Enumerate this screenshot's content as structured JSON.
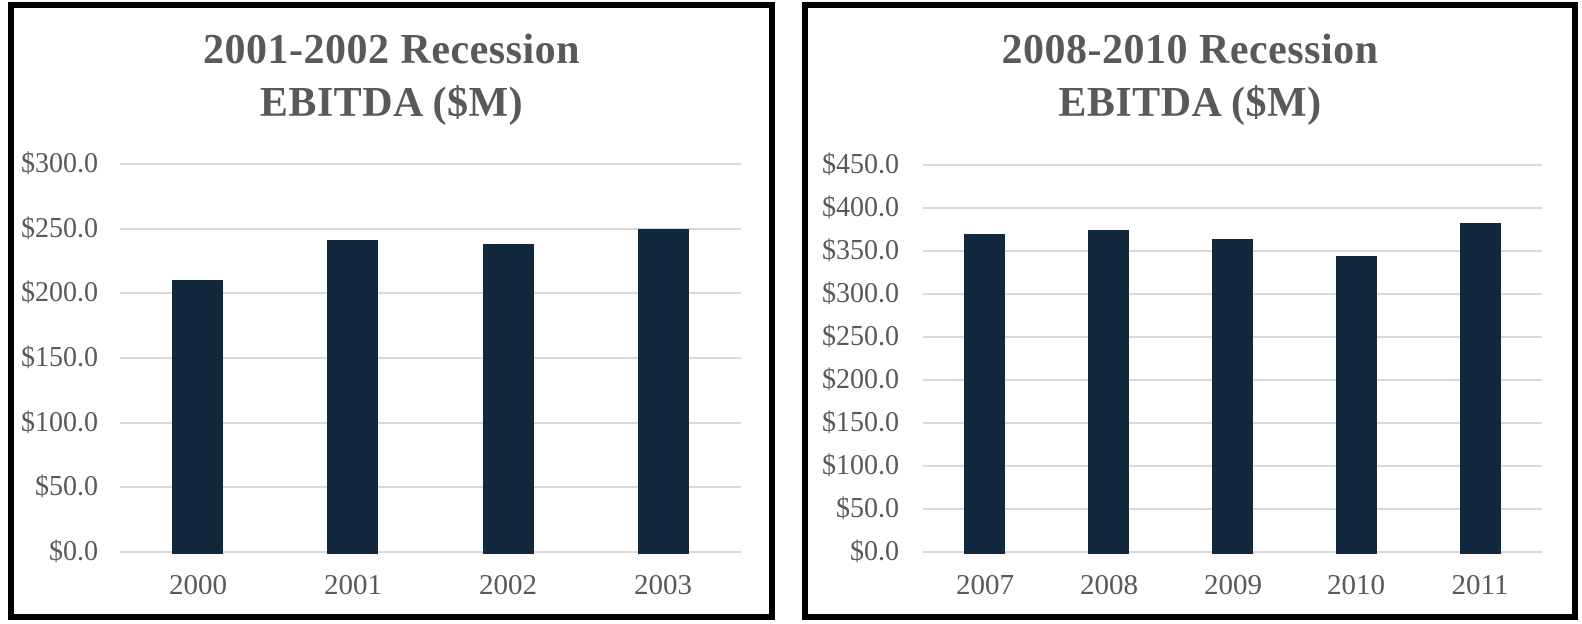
{
  "style": {
    "bar_color": "#12293d",
    "grid_color": "#d9d9d9",
    "text_color": "#595959",
    "panel_border_color": "#000000",
    "page_background": "#ffffff"
  },
  "chart_data": [
    {
      "type": "bar",
      "title": "2001-2002 Recession EBITDA ($M)",
      "title_lines": [
        "2001-2002 Recession",
        "EBITDA ($M)"
      ],
      "categories": [
        "2000",
        "2001",
        "2002",
        "2003"
      ],
      "values": [
        210,
        241,
        238,
        250
      ],
      "series": [
        {
          "name": "EBITDA ($M)",
          "values": [
            210,
            241,
            238,
            250
          ]
        }
      ],
      "xlabel": "",
      "ylabel": "EBITDA ($M)",
      "ylim": [
        0,
        300
      ],
      "ytick_step": 50,
      "yticks": [
        {
          "value": 0,
          "label": "$0.0"
        },
        {
          "value": 50,
          "label": "$50.0"
        },
        {
          "value": 100,
          "label": "$100.0"
        },
        {
          "value": 150,
          "label": "$150.0"
        },
        {
          "value": 200,
          "label": "$200.0"
        },
        {
          "value": 250,
          "label": "$250.0"
        },
        {
          "value": 300,
          "label": "$300.0"
        }
      ],
      "grid": true,
      "legend": "none"
    },
    {
      "type": "bar",
      "title": "2008-2010 Recession EBITDA ($M)",
      "title_lines": [
        "2008-2010 Recession",
        "EBITDA ($M)"
      ],
      "categories": [
        "2007",
        "2008",
        "2009",
        "2010",
        "2011"
      ],
      "values": [
        370,
        374,
        364,
        344,
        382
      ],
      "series": [
        {
          "name": "EBITDA ($M)",
          "values": [
            370,
            374,
            364,
            344,
            382
          ]
        }
      ],
      "xlabel": "",
      "ylabel": "EBITDA ($M)",
      "ylim": [
        0,
        450
      ],
      "ytick_step": 50,
      "yticks": [
        {
          "value": 0,
          "label": "$0.0"
        },
        {
          "value": 50,
          "label": "$50.0"
        },
        {
          "value": 100,
          "label": "$100.0"
        },
        {
          "value": 150,
          "label": "$150.0"
        },
        {
          "value": 200,
          "label": "$200.0"
        },
        {
          "value": 250,
          "label": "$250.0"
        },
        {
          "value": 300,
          "label": "$300.0"
        },
        {
          "value": 350,
          "label": "$350.0"
        },
        {
          "value": 400,
          "label": "$400.0"
        },
        {
          "value": 450,
          "label": "$450.0"
        }
      ],
      "grid": true,
      "legend": "none"
    }
  ]
}
